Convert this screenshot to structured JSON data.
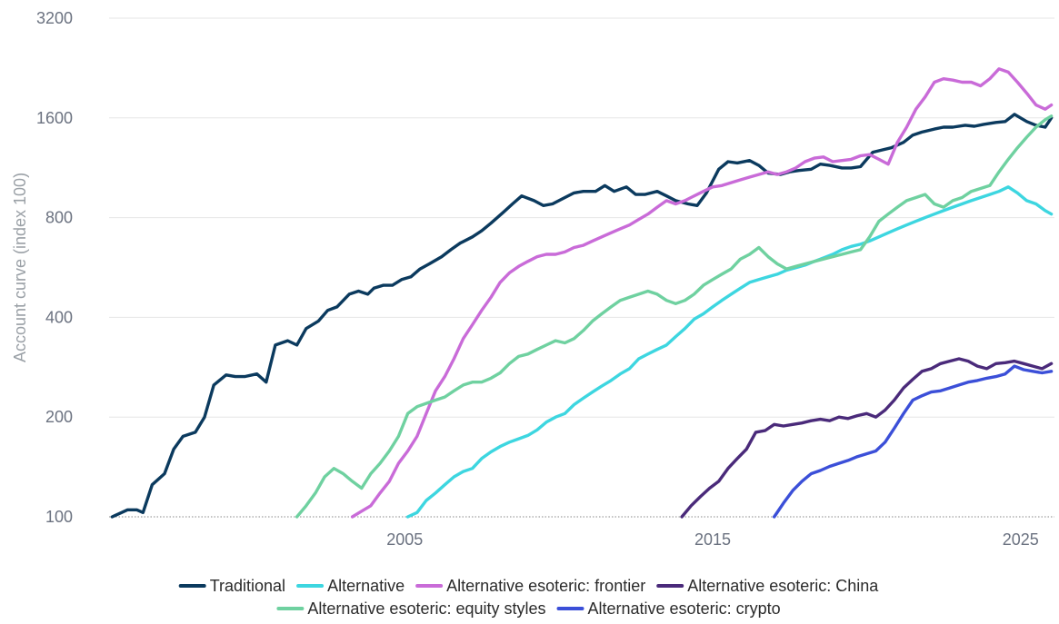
{
  "chart_data": {
    "type": "line",
    "title": "",
    "xlabel": "",
    "ylabel": "Account curve (index 100)",
    "y_scale": "log",
    "ylim": [
      100,
      3200
    ],
    "xlim": [
      1995.4,
      2026.1
    ],
    "y_ticks": [
      {
        "value": 100,
        "label": "100"
      },
      {
        "value": 200,
        "label": "200"
      },
      {
        "value": 400,
        "label": "400"
      },
      {
        "value": 800,
        "label": "800"
      },
      {
        "value": 1600,
        "label": "1600"
      },
      {
        "value": 3200,
        "label": "3200"
      }
    ],
    "x_ticks": [
      {
        "value": 2005,
        "label": "2005"
      },
      {
        "value": 2015,
        "label": "2015"
      },
      {
        "value": 2025,
        "label": "2025"
      }
    ],
    "grid": true,
    "legend_position": "bottom",
    "series": [
      {
        "name": "Traditional",
        "color": "#0b3a5e",
        "x": [
          1995.5,
          1996.0,
          1996.3,
          1996.5,
          1996.8,
          1997.2,
          1997.5,
          1997.8,
          1998.2,
          1998.5,
          1998.8,
          1999.2,
          1999.5,
          1999.8,
          2000.2,
          2000.5,
          2000.8,
          2001.2,
          2001.5,
          2001.8,
          2002.2,
          2002.5,
          2002.8,
          2003.2,
          2003.5,
          2003.8,
          2004.0,
          2004.3,
          2004.6,
          2004.9,
          2005.2,
          2005.5,
          2005.8,
          2006.2,
          2006.5,
          2006.8,
          2007.2,
          2007.5,
          2007.8,
          2008.2,
          2008.5,
          2008.8,
          2009.2,
          2009.5,
          2009.8,
          2010.2,
          2010.5,
          2010.8,
          2011.2,
          2011.5,
          2011.8,
          2012.2,
          2012.5,
          2012.8,
          2013.2,
          2013.5,
          2013.8,
          2014.2,
          2014.5,
          2014.8,
          2015.2,
          2015.5,
          2015.8,
          2016.2,
          2016.5,
          2016.8,
          2017.2,
          2017.5,
          2017.8,
          2018.2,
          2018.5,
          2018.8,
          2019.2,
          2019.5,
          2019.8,
          2020.2,
          2020.5,
          2020.8,
          2021.2,
          2021.5,
          2021.8,
          2022.2,
          2022.5,
          2022.8,
          2023.2,
          2023.5,
          2023.8,
          2024.2,
          2024.5,
          2024.8,
          2025.2,
          2025.5,
          2025.8,
          2026.0
        ],
        "values": [
          100,
          105,
          105,
          103,
          125,
          135,
          160,
          175,
          180,
          200,
          250,
          268,
          265,
          265,
          270,
          255,
          330,
          340,
          330,
          370,
          390,
          420,
          430,
          470,
          480,
          470,
          490,
          500,
          500,
          520,
          530,
          560,
          580,
          610,
          640,
          670,
          700,
          730,
          770,
          830,
          880,
          930,
          900,
          870,
          880,
          920,
          950,
          960,
          960,
          1000,
          960,
          990,
          940,
          940,
          960,
          930,
          900,
          880,
          870,
          950,
          1120,
          1180,
          1170,
          1190,
          1150,
          1090,
          1080,
          1100,
          1110,
          1120,
          1160,
          1150,
          1130,
          1130,
          1140,
          1260,
          1280,
          1300,
          1350,
          1420,
          1450,
          1480,
          1500,
          1500,
          1520,
          1510,
          1530,
          1550,
          1560,
          1640,
          1560,
          1520,
          1500,
          1600
        ]
      },
      {
        "name": "Alternative",
        "color": "#3dd6e0",
        "x": [
          2005.1,
          2005.4,
          2005.7,
          2006.0,
          2006.3,
          2006.6,
          2006.9,
          2007.2,
          2007.5,
          2007.8,
          2008.1,
          2008.4,
          2008.7,
          2009.0,
          2009.3,
          2009.6,
          2009.9,
          2010.2,
          2010.5,
          2010.8,
          2011.1,
          2011.4,
          2011.7,
          2012.0,
          2012.3,
          2012.6,
          2012.9,
          2013.2,
          2013.5,
          2013.8,
          2014.1,
          2014.4,
          2014.7,
          2015.0,
          2015.3,
          2015.6,
          2015.9,
          2016.2,
          2016.5,
          2016.8,
          2017.1,
          2017.4,
          2017.7,
          2018.0,
          2018.3,
          2018.6,
          2018.9,
          2019.2,
          2019.5,
          2019.8,
          2020.1,
          2020.4,
          2020.7,
          2021.0,
          2021.3,
          2021.6,
          2021.9,
          2022.2,
          2022.5,
          2022.8,
          2023.1,
          2023.4,
          2023.7,
          2024.0,
          2024.3,
          2024.6,
          2024.9,
          2025.2,
          2025.5,
          2025.8,
          2026.0
        ],
        "values": [
          100,
          103,
          112,
          118,
          125,
          132,
          137,
          140,
          150,
          157,
          163,
          168,
          172,
          176,
          183,
          193,
          200,
          205,
          218,
          228,
          238,
          248,
          258,
          270,
          280,
          300,
          310,
          320,
          330,
          350,
          370,
          395,
          410,
          430,
          450,
          470,
          490,
          510,
          520,
          530,
          540,
          555,
          565,
          575,
          590,
          605,
          620,
          640,
          655,
          665,
          680,
          700,
          720,
          740,
          760,
          780,
          800,
          820,
          840,
          860,
          880,
          900,
          920,
          940,
          960,
          990,
          950,
          900,
          880,
          840,
          820
        ]
      },
      {
        "name": "Alternative esoteric: frontier",
        "color": "#c96bd8",
        "x": [
          2003.3,
          2003.6,
          2003.9,
          2004.2,
          2004.5,
          2004.8,
          2005.1,
          2005.4,
          2005.7,
          2006.0,
          2006.3,
          2006.6,
          2006.9,
          2007.2,
          2007.5,
          2007.8,
          2008.1,
          2008.4,
          2008.7,
          2009.0,
          2009.3,
          2009.6,
          2009.9,
          2010.2,
          2010.5,
          2010.8,
          2011.1,
          2011.4,
          2011.7,
          2012.0,
          2012.3,
          2012.6,
          2012.9,
          2013.2,
          2013.5,
          2013.8,
          2014.1,
          2014.4,
          2014.7,
          2015.0,
          2015.3,
          2015.6,
          2015.9,
          2016.2,
          2016.5,
          2016.8,
          2017.1,
          2017.4,
          2017.7,
          2018.0,
          2018.3,
          2018.6,
          2018.9,
          2019.2,
          2019.5,
          2019.8,
          2020.1,
          2020.4,
          2020.7,
          2021.0,
          2021.3,
          2021.6,
          2021.9,
          2022.2,
          2022.5,
          2022.8,
          2023.1,
          2023.4,
          2023.7,
          2024.0,
          2024.3,
          2024.6,
          2024.9,
          2025.2,
          2025.5,
          2025.8,
          2026.0
        ],
        "values": [
          100,
          104,
          108,
          118,
          128,
          145,
          158,
          175,
          205,
          240,
          265,
          300,
          345,
          380,
          420,
          460,
          510,
          545,
          570,
          590,
          610,
          620,
          620,
          630,
          650,
          660,
          680,
          700,
          720,
          740,
          760,
          790,
          820,
          860,
          900,
          880,
          900,
          930,
          960,
          990,
          1000,
          1020,
          1040,
          1060,
          1080,
          1100,
          1080,
          1100,
          1130,
          1180,
          1210,
          1220,
          1180,
          1190,
          1200,
          1230,
          1240,
          1200,
          1160,
          1350,
          1500,
          1700,
          1850,
          2050,
          2100,
          2080,
          2050,
          2050,
          2000,
          2100,
          2250,
          2200,
          2050,
          1900,
          1750,
          1700,
          1750
        ]
      },
      {
        "name": "Alternative esoteric: China",
        "color": "#4a2a7a",
        "x": [
          2014.0,
          2014.3,
          2014.6,
          2014.9,
          2015.2,
          2015.5,
          2015.8,
          2016.1,
          2016.4,
          2016.7,
          2017.0,
          2017.3,
          2017.6,
          2017.9,
          2018.2,
          2018.5,
          2018.8,
          2019.1,
          2019.4,
          2019.7,
          2020.0,
          2020.3,
          2020.6,
          2020.9,
          2021.2,
          2021.5,
          2021.8,
          2022.1,
          2022.4,
          2022.7,
          2023.0,
          2023.3,
          2023.6,
          2023.9,
          2024.2,
          2024.5,
          2024.8,
          2025.1,
          2025.4,
          2025.7,
          2026.0
        ],
        "values": [
          100,
          108,
          115,
          122,
          128,
          140,
          150,
          160,
          180,
          182,
          190,
          188,
          190,
          192,
          195,
          197,
          195,
          200,
          198,
          202,
          205,
          200,
          210,
          225,
          245,
          260,
          275,
          280,
          290,
          295,
          300,
          295,
          285,
          280,
          290,
          292,
          295,
          290,
          285,
          280,
          290
        ]
      },
      {
        "name": "Alternative esoteric: equity styles",
        "color": "#6fd1a0",
        "x": [
          2001.5,
          2001.8,
          2002.1,
          2002.4,
          2002.7,
          2003.0,
          2003.3,
          2003.6,
          2003.9,
          2004.2,
          2004.5,
          2004.8,
          2005.1,
          2005.4,
          2005.7,
          2006.0,
          2006.3,
          2006.6,
          2006.9,
          2007.2,
          2007.5,
          2007.8,
          2008.1,
          2008.4,
          2008.7,
          2009.0,
          2009.3,
          2009.6,
          2009.9,
          2010.2,
          2010.5,
          2010.8,
          2011.1,
          2011.4,
          2011.7,
          2012.0,
          2012.3,
          2012.6,
          2012.9,
          2013.2,
          2013.5,
          2013.8,
          2014.1,
          2014.4,
          2014.7,
          2015.0,
          2015.3,
          2015.6,
          2015.9,
          2016.2,
          2016.5,
          2016.8,
          2017.1,
          2017.4,
          2017.7,
          2018.0,
          2018.3,
          2018.6,
          2018.9,
          2019.2,
          2019.5,
          2019.8,
          2020.1,
          2020.4,
          2020.7,
          2021.0,
          2021.3,
          2021.6,
          2021.9,
          2022.2,
          2022.5,
          2022.8,
          2023.1,
          2023.4,
          2023.7,
          2024.0,
          2024.3,
          2024.6,
          2024.9,
          2025.2,
          2025.5,
          2025.8,
          2026.0
        ],
        "values": [
          100,
          108,
          118,
          132,
          140,
          135,
          128,
          122,
          135,
          145,
          158,
          175,
          205,
          215,
          220,
          225,
          230,
          240,
          250,
          255,
          255,
          262,
          272,
          290,
          305,
          310,
          320,
          330,
          340,
          335,
          345,
          365,
          390,
          410,
          430,
          450,
          460,
          470,
          480,
          470,
          450,
          440,
          450,
          470,
          500,
          520,
          540,
          560,
          600,
          620,
          650,
          610,
          580,
          560,
          570,
          580,
          590,
          600,
          610,
          620,
          630,
          640,
          700,
          780,
          820,
          860,
          900,
          920,
          940,
          880,
          860,
          900,
          920,
          960,
          980,
          1000,
          1100,
          1200,
          1300,
          1400,
          1500,
          1580,
          1620
        ]
      },
      {
        "name": "Alternative esoteric: crypto",
        "color": "#3b4fd8",
        "x": [
          2017.0,
          2017.3,
          2017.6,
          2017.9,
          2018.2,
          2018.5,
          2018.8,
          2019.1,
          2019.4,
          2019.7,
          2020.0,
          2020.3,
          2020.6,
          2020.9,
          2021.2,
          2021.5,
          2021.8,
          2022.1,
          2022.4,
          2022.7,
          2023.0,
          2023.3,
          2023.6,
          2023.9,
          2024.2,
          2024.5,
          2024.8,
          2025.1,
          2025.4,
          2025.7,
          2026.0
        ],
        "values": [
          100,
          110,
          120,
          128,
          135,
          138,
          142,
          145,
          148,
          152,
          155,
          158,
          168,
          185,
          205,
          225,
          232,
          238,
          240,
          245,
          250,
          255,
          258,
          262,
          265,
          270,
          285,
          278,
          275,
          272,
          275
        ]
      }
    ]
  },
  "legend": {
    "row1": [
      "Traditional",
      "Alternative",
      "Alternative esoteric: frontier",
      "Alternative esoteric: China"
    ],
    "row2": [
      "Alternative esoteric: equity styles",
      "Alternative esoteric: crypto"
    ]
  }
}
